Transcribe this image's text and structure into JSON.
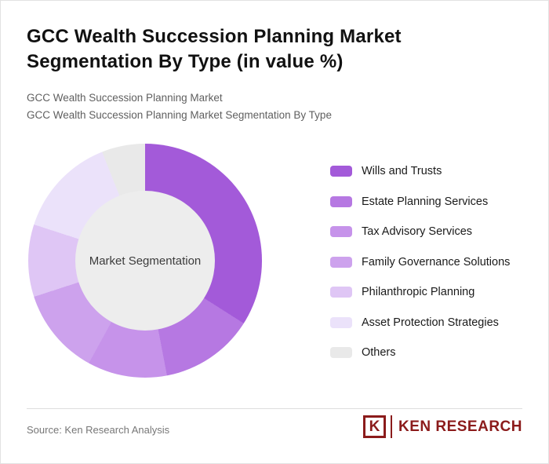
{
  "page": {
    "title": "GCC Wealth Succession Planning Market Segmentation By Type (in value %)",
    "subtitle_line1": "GCC Wealth Succession Planning Market",
    "subtitle_line2": "GCC Wealth Succession Planning Market Segmentation By Type"
  },
  "chart_data": {
    "type": "pie",
    "donut": true,
    "title": "GCC Wealth Succession Planning Market Segmentation By Type (in value %)",
    "center_label": "Market Segmentation",
    "categories": [
      "Wills and Trusts",
      "Estate Planning Services",
      "Tax Advisory Services",
      "Family Governance Solutions",
      "Philanthropic Planning",
      "Asset Protection Strategies",
      "Others"
    ],
    "values": [
      34,
      13,
      11,
      12,
      10,
      14,
      6
    ],
    "colors": [
      "#a35ad9",
      "#b678e2",
      "#c693ea",
      "#cda2ed",
      "#dfc6f5",
      "#ebe2fa",
      "#e9e9e9"
    ],
    "center_color": "#ededed",
    "legend_position": "right",
    "start_angle_deg": 0
  },
  "footer": {
    "source": "Source: Ken Research Analysis",
    "logo": {
      "k": "K",
      "name": "KEN RESEARCH",
      "color": "#8b1b1b"
    }
  }
}
